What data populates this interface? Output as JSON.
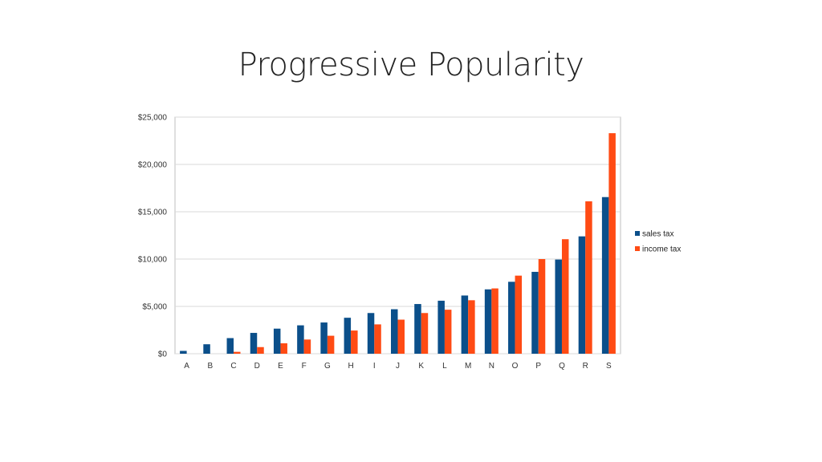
{
  "title": "Progressive Popularity",
  "chart_data": {
    "type": "bar",
    "title": "Progressive Popularity",
    "categories": [
      "A",
      "B",
      "C",
      "D",
      "E",
      "F",
      "G",
      "H",
      "I",
      "J",
      "K",
      "L",
      "M",
      "N",
      "O",
      "P",
      "Q",
      "R",
      "S"
    ],
    "series": [
      {
        "name": "sales tax",
        "color": "#0b4f8a",
        "values": [
          300,
          1000,
          1650,
          2200,
          2650,
          3000,
          3300,
          3800,
          4300,
          4700,
          5250,
          5600,
          6150,
          6800,
          7600,
          8650,
          9950,
          12400,
          16550
        ]
      },
      {
        "name": "income tax",
        "color": "#ff4b14",
        "values": [
          0,
          0,
          200,
          700,
          1100,
          1500,
          1900,
          2450,
          3100,
          3600,
          4300,
          4650,
          5650,
          6900,
          8250,
          10000,
          12100,
          16100,
          23300
        ]
      }
    ],
    "ylim": [
      0,
      25000
    ],
    "yticks": [
      0,
      5000,
      10000,
      15000,
      20000,
      25000
    ],
    "ytick_labels": [
      "$0",
      "$5,000",
      "$10,000",
      "$15,000",
      "$20,000",
      "$25,000"
    ],
    "grid": true,
    "legend": "right"
  }
}
